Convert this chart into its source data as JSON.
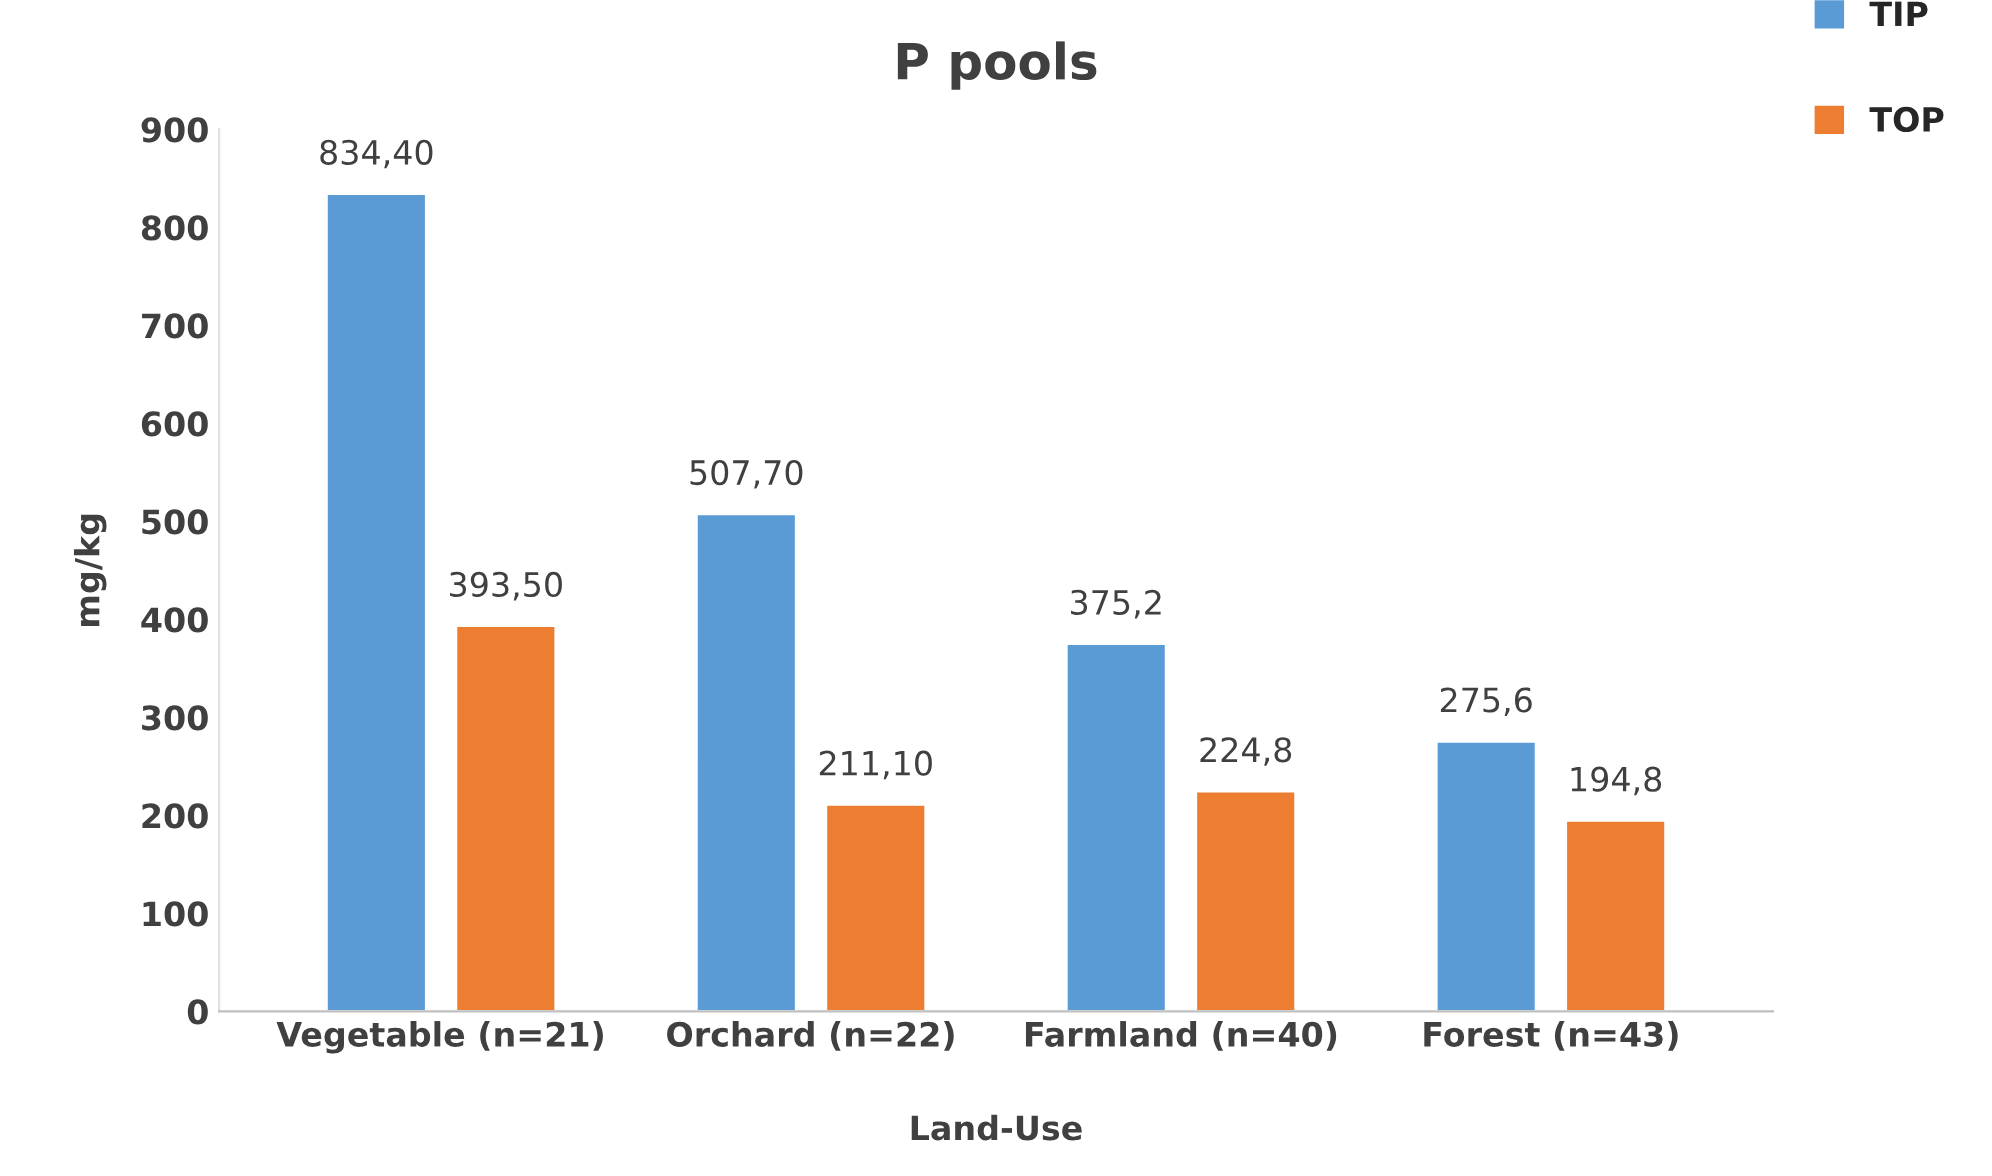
{
  "chart_data": {
    "type": "bar",
    "title": "P pools",
    "xlabel": "Land-Use",
    "ylabel": "mg/kg",
    "categories": [
      "Vegetable (n=21)",
      "Orchard (n=22)",
      "Farmland (n=40)",
      "Forest (n=43)"
    ],
    "series": [
      {
        "name": "TIP",
        "color": "#5b9bd5",
        "values": [
          834.4,
          507.7,
          375.2,
          275.6
        ],
        "value_labels": [
          "834,40",
          "507,70",
          "375,2",
          "275,6"
        ]
      },
      {
        "name": "TOP",
        "color": "#ed7d31",
        "values": [
          393.5,
          211.1,
          224.8,
          194.8
        ],
        "value_labels": [
          "393,50",
          "211,10",
          "224,8",
          "194,8"
        ]
      }
    ],
    "ylim": [
      0,
      900
    ],
    "yticks": [
      0,
      100,
      200,
      300,
      400,
      500,
      600,
      700,
      800,
      900
    ],
    "grid": false,
    "legend": "top right"
  }
}
